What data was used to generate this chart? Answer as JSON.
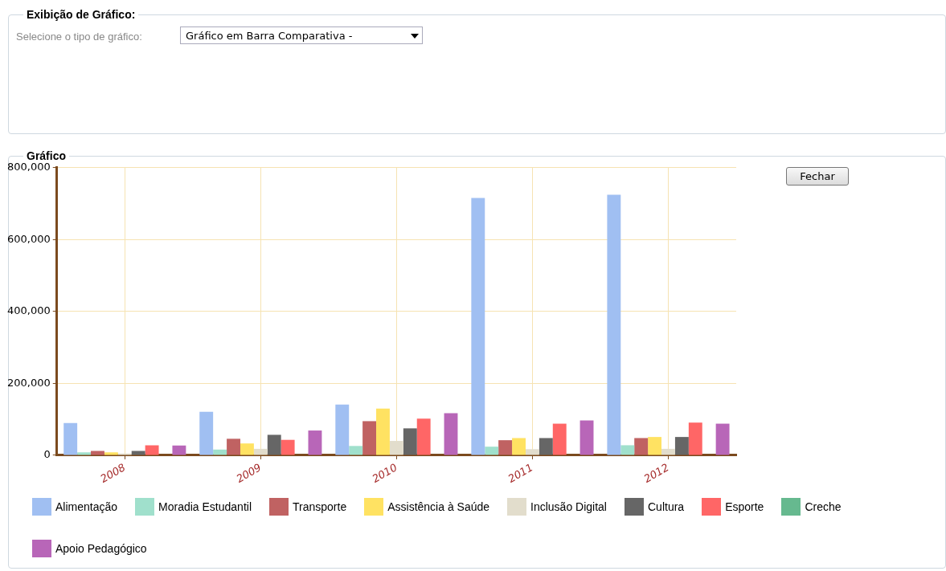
{
  "chart_data": {
    "type": "bar",
    "title": "Gráfico",
    "annotations": [
      "Exibição de Gráfico:",
      "Selecione o tipo de gráfico:",
      "Gráfico em Barra Comparativa -",
      "Fechar"
    ],
    "categories": [
      "2008",
      "2009",
      "2010",
      "2011",
      "2012"
    ],
    "series": [
      {
        "name": "Alimentação",
        "color": "#a0bff2",
        "values": [
          90000,
          121000,
          141000,
          716000,
          725000
        ]
      },
      {
        "name": "Moradia Estudantil",
        "color": "#a0e0cc",
        "values": [
          8000,
          16000,
          26000,
          24000,
          28000
        ]
      },
      {
        "name": "Transporte",
        "color": "#c06262",
        "values": [
          12000,
          46000,
          95000,
          42000,
          48000
        ]
      },
      {
        "name": "Assistência à Saúde",
        "color": "#ffe262",
        "values": [
          8000,
          33000,
          130000,
          48000,
          51000
        ]
      },
      {
        "name": "Inclusão Digital",
        "color": "#e2ddcc",
        "values": [
          5000,
          18000,
          40000,
          17000,
          18000
        ]
      },
      {
        "name": "Cultura",
        "color": "#666666",
        "values": [
          12000,
          57000,
          75000,
          48000,
          51000
        ]
      },
      {
        "name": "Esporte",
        "color": "#ff6666",
        "values": [
          28000,
          43000,
          102000,
          88000,
          91000
        ]
      },
      {
        "name": "Creche",
        "color": "#66b98f",
        "values": [
          0,
          0,
          0,
          0,
          0
        ]
      },
      {
        "name": "Apoio Pedagógico",
        "color": "#b866b8",
        "values": [
          27000,
          69000,
          117000,
          97000,
          88000
        ]
      }
    ],
    "ylim": [
      0,
      800000
    ],
    "yticks": [
      0,
      {
        "value": 200000,
        "label": "200,000"
      },
      {
        "value": 400000,
        "label": "400,000"
      },
      {
        "value": 600000,
        "label": "600,000"
      },
      {
        "value": 800000,
        "label": "800,000"
      }
    ],
    "grid": true,
    "legend": "bottom"
  }
}
